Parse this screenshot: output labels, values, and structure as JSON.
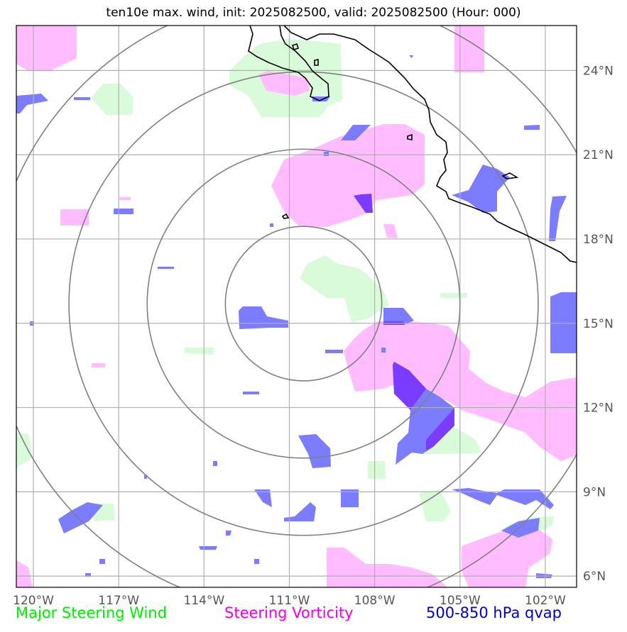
{
  "title": "ten10e max. wind, init: 2025082500, valid: 2025082500 (Hour: 000)",
  "map": {
    "lon_range": [
      -120.6,
      -100.9
    ],
    "lat_range": [
      5.6,
      25.6
    ],
    "lon_ticks": [
      {
        "value": -120,
        "label": "120°W"
      },
      {
        "value": -117,
        "label": "117°W"
      },
      {
        "value": -114,
        "label": "114°W"
      },
      {
        "value": -111,
        "label": "111°W"
      },
      {
        "value": -108,
        "label": "108°W"
      },
      {
        "value": -105,
        "label": "105°W"
      },
      {
        "value": -102,
        "label": "102°W"
      }
    ],
    "lat_ticks": [
      {
        "value": 6,
        "label": "6°N"
      },
      {
        "value": 9,
        "label": "9°N"
      },
      {
        "value": 12,
        "label": "12°N"
      },
      {
        "value": 15,
        "label": "15°N"
      },
      {
        "value": 18,
        "label": "18°N"
      },
      {
        "value": 21,
        "label": "21°N"
      },
      {
        "value": 24,
        "label": "24°N"
      }
    ],
    "storm_center": {
      "lon": -110.5,
      "lat": 15.7
    },
    "range_rings_deg": [
      2.75,
      5.5,
      8.25,
      11.0
    ],
    "colors": {
      "wind": "#00ee00",
      "vorticity": "#ee00ee",
      "qvap": "#0000cc",
      "wind_fill": "#d9fbd9",
      "vort_fill": "#ffbcff",
      "qvap_fill": "#7c7cff",
      "qvap_dark": "#7a3cff",
      "grid": "#b0b0b0",
      "ring": "#808080",
      "coast": "#000000"
    }
  },
  "legend": {
    "wind": "Major Steering Wind",
    "vorticity": "Steering Vorticity",
    "qvap": "500-850 hPa qvap"
  }
}
